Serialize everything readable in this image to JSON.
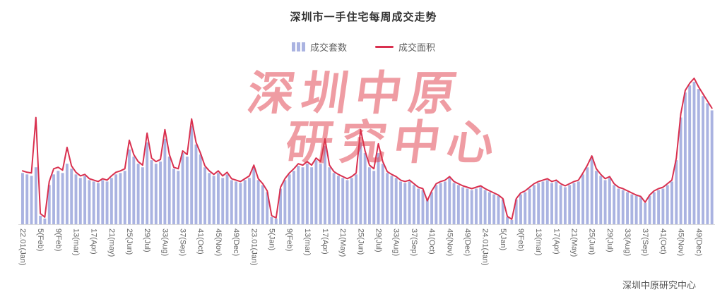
{
  "title": "深圳市一手住宅每周成交走势",
  "legend": {
    "items": [
      {
        "label": "成交套数",
        "type": "bar"
      },
      {
        "label": "成交面积",
        "type": "line"
      }
    ]
  },
  "watermark": {
    "line1": "深圳中原",
    "line2": "研究中心"
  },
  "footer": "深圳中原研究中心",
  "colors": {
    "bar": "#aab3e1",
    "line": "#d9304f",
    "title": "#333333",
    "axis_label": "#666666",
    "axis_line": "#d9d9d9",
    "watermark": "rgba(223,57,72,0.5)",
    "footer": "#555555"
  },
  "chart_data": {
    "type": "bar",
    "title": "深圳市一手住宅每周成交走势",
    "xlabel": "",
    "ylabel": "",
    "ylim": [
      0,
      210
    ],
    "grid": false,
    "legend_position": "top",
    "n_points": 156,
    "x_tick_every": 4,
    "x_tick_labels": [
      "22.01(Jan)",
      "5(Feb)",
      "9(Feb)",
      "13(mar)",
      "17(Apr)",
      "21(may)",
      "25(Jun)",
      "29(Jul)",
      "33(Aug)",
      "37(Sep)",
      "41(Oct)",
      "45(Nov)",
      "49(Dec)",
      "23.01(Jan)",
      "5(Jan)",
      "9(Feb)",
      "13(mar)",
      "17(Apr)",
      "21(May)",
      "25(Jun)",
      "29(Jul)",
      "33(Aug)",
      "37(Sep)",
      "41(Oct)",
      "45(Nov)",
      "49(Dec)",
      "24.01(Jan)",
      "5(Jan)",
      "9(Feb)",
      "13(mar)",
      "17(Apr)",
      "21(May)",
      "25(Jun)",
      "29(Jul)",
      "33(Aug)",
      "37(Sep)",
      "41(Oct)",
      "45(Nov)",
      "49(Dec)"
    ],
    "series": [
      {
        "name": "成交套数",
        "type": "bar",
        "values": [
          72,
          70,
          68,
          80,
          12,
          8,
          55,
          70,
          75,
          72,
          85,
          78,
          70,
          65,
          68,
          62,
          60,
          58,
          62,
          60,
          65,
          70,
          72,
          75,
          105,
          95,
          85,
          80,
          115,
          90,
          85,
          88,
          120,
          95,
          78,
          75,
          100,
          95,
          138,
          112,
          98,
          80,
          72,
          68,
          72,
          65,
          70,
          62,
          60,
          58,
          62,
          65,
          80,
          62,
          55,
          45,
          10,
          8,
          50,
          62,
          70,
          75,
          82,
          80,
          85,
          80,
          90,
          85,
          110,
          80,
          72,
          68,
          65,
          62,
          65,
          70,
          115,
          100,
          80,
          75,
          100,
          85,
          72,
          68,
          65,
          60,
          58,
          60,
          55,
          50,
          48,
          35,
          45,
          55,
          58,
          60,
          65,
          58,
          55,
          52,
          50,
          48,
          50,
          52,
          48,
          45,
          42,
          40,
          35,
          10,
          6,
          35,
          42,
          45,
          50,
          55,
          58,
          60,
          62,
          58,
          60,
          55,
          52,
          55,
          58,
          60,
          70,
          80,
          95,
          75,
          68,
          62,
          65,
          55,
          50,
          48,
          45,
          42,
          40,
          38,
          30,
          40,
          45,
          48,
          50,
          55,
          60,
          90,
          150,
          185,
          195,
          200,
          190,
          180,
          170,
          160
        ]
      },
      {
        "name": "成交面积",
        "type": "line",
        "values": [
          75,
          73,
          72,
          150,
          15,
          10,
          60,
          78,
          80,
          76,
          108,
          82,
          73,
          68,
          70,
          64,
          62,
          60,
          64,
          62,
          68,
          73,
          75,
          78,
          118,
          98,
          88,
          83,
          128,
          93,
          88,
          91,
          133,
          98,
          80,
          78,
          103,
          98,
          148,
          115,
          100,
          82,
          75,
          70,
          75,
          68,
          73,
          64,
          62,
          60,
          64,
          68,
          83,
          64,
          57,
          47,
          12,
          9,
          52,
          64,
          72,
          78,
          85,
          83,
          88,
          83,
          93,
          88,
          120,
          83,
          74,
          70,
          67,
          64,
          67,
          72,
          133,
          103,
          83,
          78,
          113,
          88,
          74,
          70,
          67,
          62,
          60,
          62,
          57,
          52,
          50,
          33,
          47,
          57,
          60,
          62,
          67,
          60,
          57,
          54,
          52,
          50,
          52,
          54,
          50,
          47,
          44,
          41,
          36,
          11,
          7,
          36,
          44,
          47,
          52,
          57,
          60,
          62,
          64,
          60,
          62,
          57,
          54,
          57,
          60,
          62,
          72,
          83,
          96,
          78,
          70,
          64,
          67,
          57,
          52,
          50,
          47,
          44,
          41,
          39,
          31,
          41,
          47,
          50,
          52,
          57,
          62,
          93,
          155,
          188,
          198,
          205,
          193,
          183,
          173,
          163
        ]
      }
    ]
  }
}
